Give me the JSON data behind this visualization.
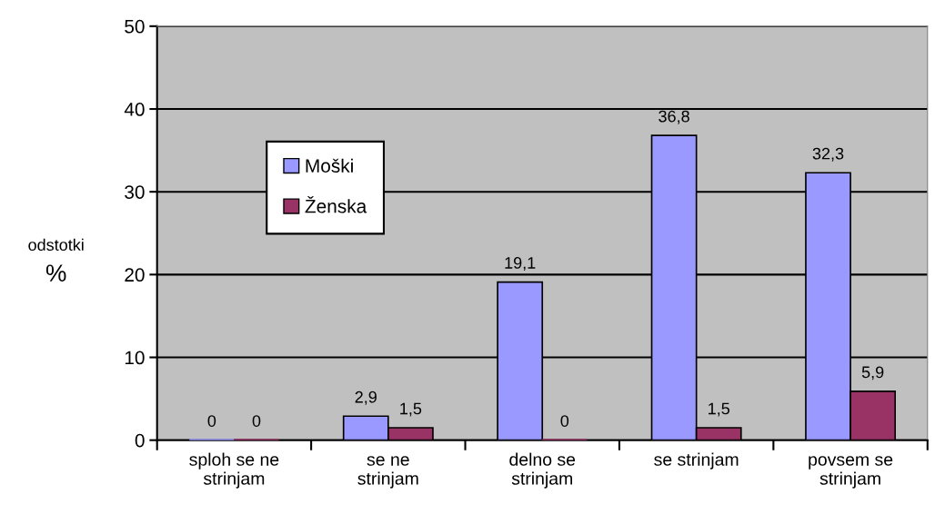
{
  "chart_data": {
    "type": "bar",
    "ylabel": "odstotki\n%",
    "categories": [
      "sploh se ne\nstrinjam",
      "se ne\nstrinjam",
      "delno se\nstrinjam",
      "se strinjam",
      "povsem se\nstrinjam"
    ],
    "series": [
      {
        "name": "Moški",
        "color": "#9999ff",
        "values": [
          0,
          2.9,
          19.1,
          36.8,
          32.3
        ],
        "value_labels": [
          "0",
          "2,9",
          "19,1",
          "36,8",
          "32,3"
        ]
      },
      {
        "name": "Ženska",
        "color": "#993366",
        "values": [
          0,
          1.5,
          0,
          1.5,
          5.9
        ],
        "value_labels": [
          "0",
          "1,5",
          "0",
          "1,5",
          "5,9"
        ]
      }
    ],
    "ylim": [
      0,
      50
    ],
    "yticks": [
      0,
      10,
      20,
      30,
      40,
      50
    ],
    "grid": "y",
    "legend": "left"
  }
}
